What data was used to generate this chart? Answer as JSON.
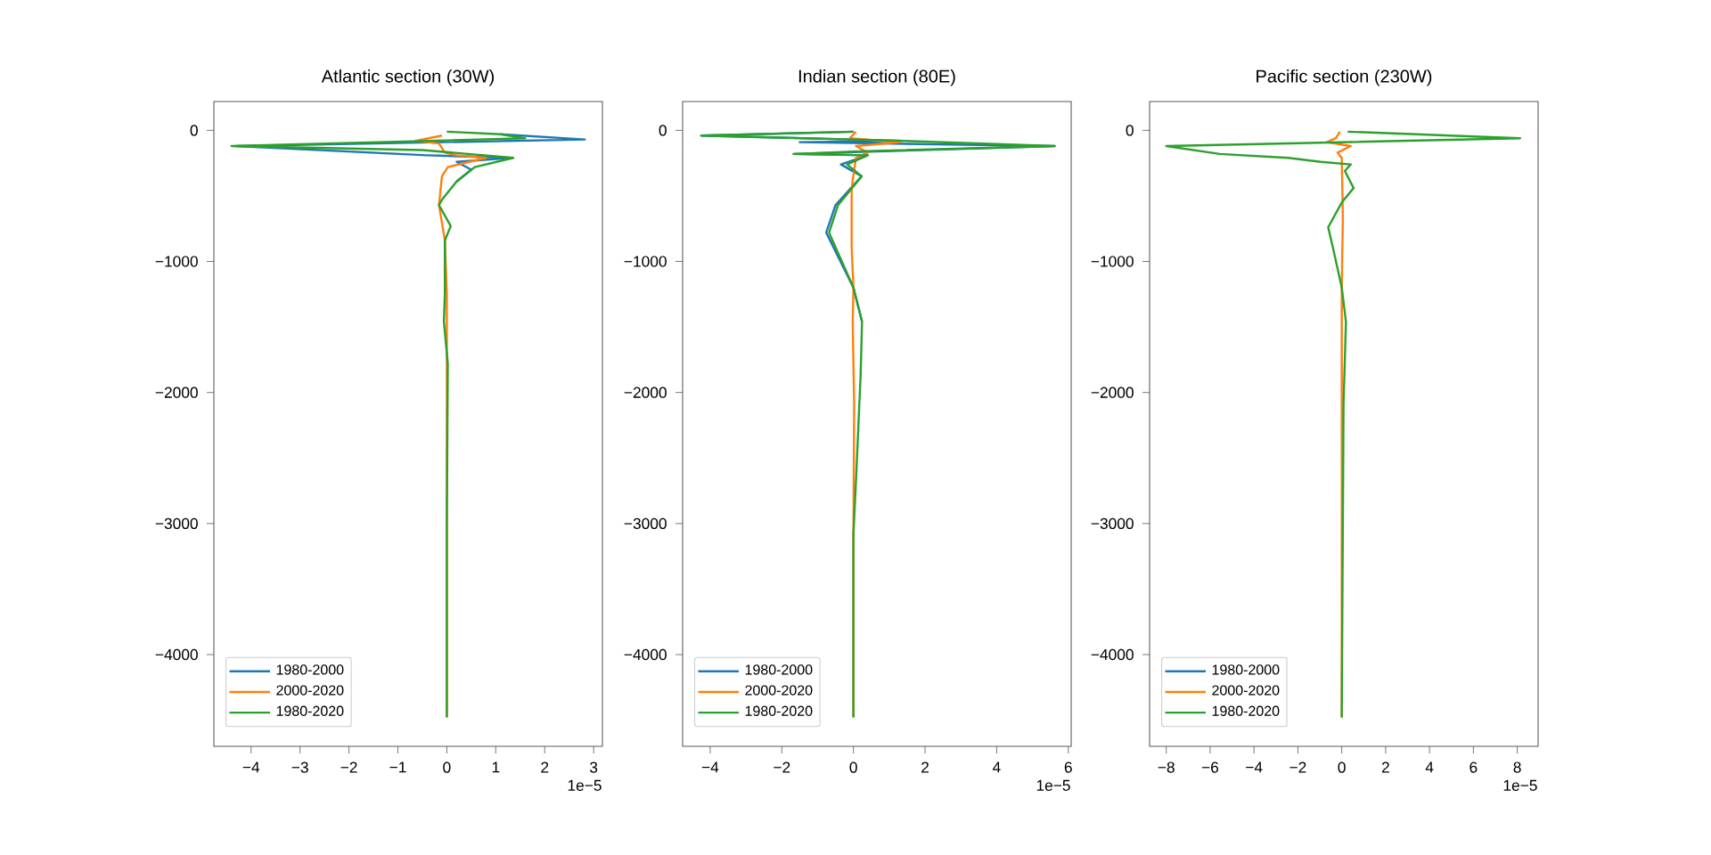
{
  "chart_data": [
    {
      "type": "line",
      "title": "Atlantic section (30W)",
      "legend": "bottom left",
      "annotations": [
        "1e−5"
      ],
      "xlim": [
        -4.76,
        3.18
      ],
      "ylim": [
        -4700,
        220
      ],
      "xticks": [
        {
          "value": -4,
          "label": "−4"
        },
        {
          "value": -3,
          "label": "−3"
        },
        {
          "value": -2,
          "label": "−2"
        },
        {
          "value": -1,
          "label": "−1"
        },
        0,
        1,
        2,
        3
      ],
      "yticks": [
        0,
        {
          "value": -1000,
          "label": "−1000"
        },
        {
          "value": -2000,
          "label": "−2000"
        },
        {
          "value": -3000,
          "label": "−3000"
        },
        {
          "value": -4000,
          "label": "−4000"
        }
      ],
      "series": [
        {
          "name": "1980-2000",
          "color": "#1f77b4",
          "x": [
            null,
            1.1,
            2.82,
            -4.3,
            -0.4,
            1.3,
            0.2,
            0.5,
            0.2,
            null,
            null,
            null,
            null,
            null,
            null,
            null,
            null,
            null
          ],
          "values": [
            null,
            -30,
            -70,
            -120,
            -190,
            -210,
            -240,
            -300,
            -390,
            null,
            null,
            null,
            null,
            null,
            null,
            null,
            null,
            null
          ]
        },
        {
          "name": "2000-2020",
          "color": "#ff7f0e",
          "x": [
            -0.1,
            -0.64,
            -0.16,
            -0.04,
            0.2,
            0.8,
            0.02,
            -0.1,
            -0.16,
            -0.04,
            0,
            0
          ],
          "values": [
            -40,
            -80,
            -100,
            -170,
            -190,
            -210,
            -280,
            -350,
            -570,
            -840,
            -1250,
            -4480
          ]
        },
        {
          "name": "1980-2020",
          "color": "#2ca02c",
          "x": [
            0,
            1.1,
            1.6,
            -4.4,
            -0.5,
            1.36,
            0.57,
            0.2,
            -0.1,
            -0.16,
            0.08,
            -0.04,
            -0.04,
            -0.06,
            0.02,
            0,
            0
          ],
          "values": [
            -10,
            -30,
            -60,
            -120,
            -150,
            -210,
            -280,
            -390,
            -530,
            -570,
            -730,
            -840,
            -1250,
            -1460,
            -1780,
            -2990,
            -4480
          ]
        }
      ]
    },
    {
      "type": "line",
      "title": "Indian section (80E)",
      "legend": "bottom left",
      "annotations": [
        "1e−5"
      ],
      "xlim": [
        -4.77,
        6.08
      ],
      "ylim": [
        -4700,
        220
      ],
      "xticks": [
        {
          "value": -4,
          "label": "−4"
        },
        {
          "value": -2,
          "label": "−2"
        },
        0,
        2,
        4,
        6
      ],
      "yticks": [
        0,
        {
          "value": -1000,
          "label": "−1000"
        },
        {
          "value": -2000,
          "label": "−2000"
        },
        {
          "value": -3000,
          "label": "−3000"
        },
        {
          "value": -4000,
          "label": "−4000"
        }
      ],
      "series": [
        {
          "name": "1980-2000",
          "color": "#1f77b4",
          "x": [
            0,
            -4.25,
            1.4,
            -1.5,
            5.62,
            -1.67,
            0.4,
            -0.35,
            0.23,
            -0.5,
            -0.76,
            0,
            0.24,
            null,
            null,
            null,
            null
          ],
          "values": [
            -10,
            -40,
            -80,
            -90,
            -120,
            -180,
            -190,
            -260,
            -350,
            -570,
            -780,
            -1200,
            -1460,
            null,
            null,
            null,
            null
          ]
        },
        {
          "name": "2000-2020",
          "color": "#ff7f0e",
          "x": [
            0.07,
            -0.1,
            1.3,
            0.07,
            0.4,
            0.07,
            -0.05,
            -0.05,
            0,
            -0.02,
            0.02,
            0,
            0
          ],
          "values": [
            -10,
            -60,
            -90,
            -120,
            -170,
            -210,
            -440,
            -890,
            -1200,
            -1460,
            -2090,
            -3080,
            -4480
          ]
        },
        {
          "name": "1980-2020",
          "color": "#2ca02c",
          "x": [
            0,
            -4.25,
            1.4,
            5.62,
            0.15,
            -1.67,
            0.4,
            -0.18,
            0.23,
            -0.43,
            -0.68,
            0,
            0.24,
            0.2,
            0.07,
            0,
            0
          ],
          "values": [
            -10,
            -40,
            -80,
            -120,
            -160,
            -180,
            -190,
            -260,
            -350,
            -570,
            -780,
            -1200,
            -1460,
            -1870,
            -2680,
            -3080,
            -4480
          ]
        }
      ]
    },
    {
      "type": "line",
      "title": "Pacific section (230W)",
      "legend": "bottom left",
      "annotations": [
        "1e−5"
      ],
      "xlim": [
        -8.76,
        8.95
      ],
      "ylim": [
        -4700,
        220
      ],
      "xticks": [
        {
          "value": -8,
          "label": "−8"
        },
        {
          "value": -6,
          "label": "−6"
        },
        {
          "value": -4,
          "label": "−4"
        },
        {
          "value": -2,
          "label": "−2"
        },
        0,
        2,
        4,
        6,
        8
      ],
      "yticks": [
        0,
        {
          "value": -1000,
          "label": "−1000"
        },
        {
          "value": -2000,
          "label": "−2000"
        },
        {
          "value": -3000,
          "label": "−3000"
        },
        {
          "value": -4000,
          "label": "−4000"
        }
      ],
      "series": [
        {
          "name": "1980-2000",
          "color": "#1f77b4",
          "x": [
            null,
            null,
            null,
            null,
            null,
            null,
            null,
            null,
            null,
            null,
            null,
            null,
            null,
            null,
            null,
            null
          ],
          "values": [
            null,
            null,
            null,
            null,
            null,
            null,
            null,
            null,
            null,
            null,
            null,
            null,
            null,
            null,
            null,
            null
          ]
        },
        {
          "name": "2000-2020",
          "color": "#ff7f0e",
          "x": [
            -0.08,
            -0.27,
            -0.68,
            0.41,
            -0.19,
            0,
            0.05,
            0,
            0
          ],
          "values": [
            -10,
            -60,
            -90,
            -120,
            -170,
            -210,
            -660,
            -1200,
            -4480
          ]
        },
        {
          "name": "1980-2020",
          "color": "#2ca02c",
          "x": [
            0.27,
            8.13,
            -8.0,
            -5.56,
            -2.44,
            -0.95,
            0.41,
            0.14,
            0.54,
            0,
            -0.62,
            -0.41,
            0,
            0.19,
            0.08,
            0
          ],
          "values": [
            -10,
            -60,
            -120,
            -180,
            -210,
            -240,
            -260,
            -310,
            -440,
            -550,
            -740,
            -890,
            -1200,
            -1460,
            -2090,
            -4480
          ]
        }
      ]
    }
  ]
}
